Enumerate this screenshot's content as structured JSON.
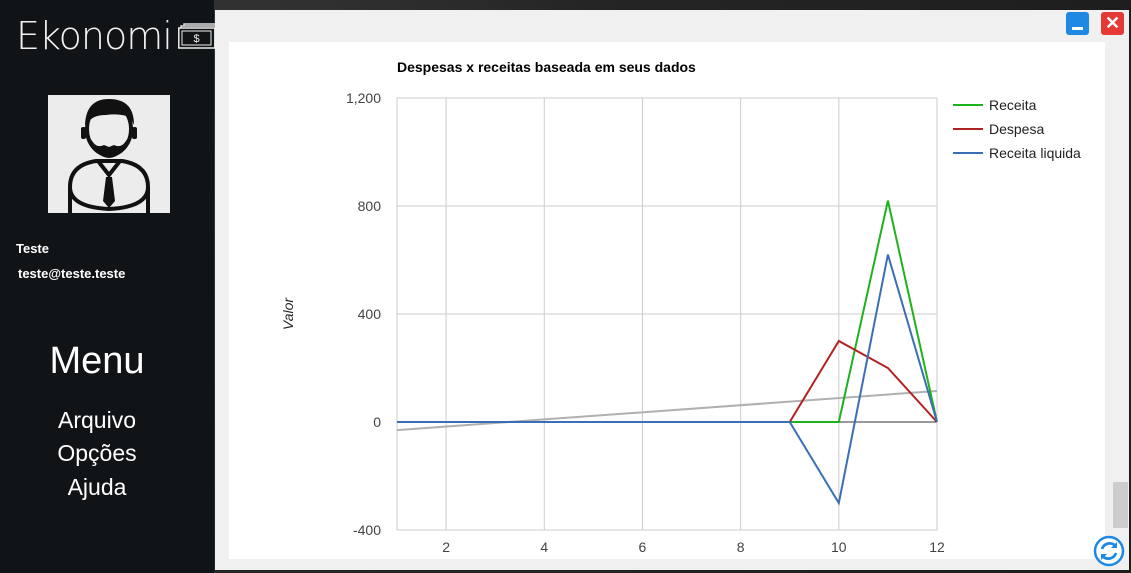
{
  "app": {
    "logo_text": "Ekonomi"
  },
  "user": {
    "name": "Teste",
    "email": "teste@teste.teste"
  },
  "menu": {
    "title": "Menu",
    "items": [
      "Arquivo",
      "Opções",
      "Ajuda"
    ]
  },
  "window_buttons": {
    "close_symbol": "✕"
  },
  "chart_data": {
    "type": "line",
    "title": "Despesas x receitas baseada em seus dados",
    "xlabel": "",
    "ylabel": "Valor",
    "xlim": [
      1,
      12
    ],
    "ylim": [
      -400,
      1200
    ],
    "x_ticks": [
      2,
      4,
      6,
      8,
      10,
      12
    ],
    "y_ticks": [
      -400,
      0,
      400,
      800,
      1200
    ],
    "y_tick_labels": [
      "-400",
      "0",
      "400",
      "800",
      "1,200"
    ],
    "grid": true,
    "legend_position": "right",
    "series": [
      {
        "name": "Receita",
        "color": "#1db31d",
        "x": [
          1,
          2,
          3,
          4,
          5,
          6,
          7,
          8,
          9,
          10,
          11,
          12
        ],
        "values": [
          0,
          0,
          0,
          0,
          0,
          0,
          0,
          0,
          0,
          0,
          820,
          0
        ]
      },
      {
        "name": "Despesa",
        "color": "#b22222",
        "x": [
          1,
          2,
          3,
          4,
          5,
          6,
          7,
          8,
          9,
          10,
          11,
          12
        ],
        "values": [
          0,
          0,
          0,
          0,
          0,
          0,
          0,
          0,
          0,
          300,
          200,
          0
        ]
      },
      {
        "name": "Receita liquida",
        "color": "#3a6fb5",
        "x": [
          1,
          2,
          3,
          4,
          5,
          6,
          7,
          8,
          9,
          10,
          11,
          12
        ],
        "values": [
          0,
          0,
          0,
          0,
          0,
          0,
          0,
          0,
          0,
          -300,
          620,
          0
        ]
      }
    ],
    "trendline": {
      "color": "#b0b0b0",
      "x": [
        1,
        12
      ],
      "values": [
        -30,
        115
      ]
    }
  }
}
